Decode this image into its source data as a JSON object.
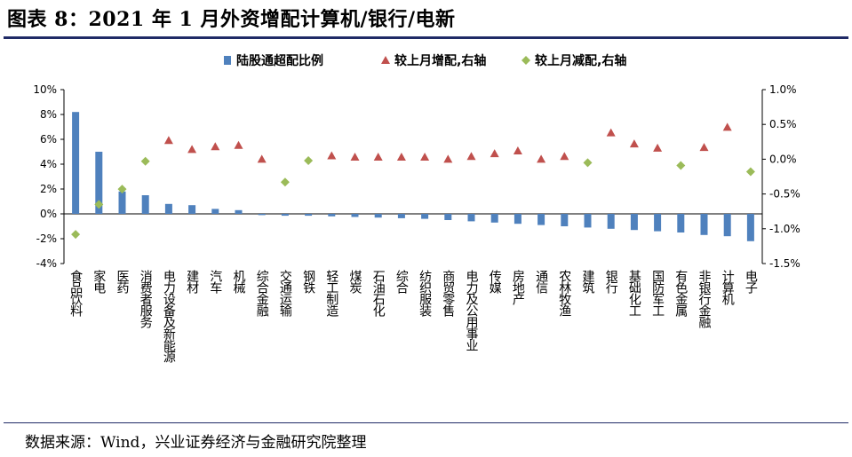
{
  "title": "图表 8：2021 年 1 月外资增配计算机/银行/电新",
  "source": "数据来源：Wind，兴业证券经济与金融研究院整理",
  "colors": {
    "bar": "#4f81bd",
    "increase": "#c0504d",
    "decrease": "#9bbb59",
    "rule": "#1f2a66"
  },
  "chart_data": {
    "type": "bar",
    "legend": {
      "position": "top",
      "items": [
        {
          "label": "陆股通超配比例",
          "marker": "bar"
        },
        {
          "label": "较上月增配,右轴",
          "marker": "triangle"
        },
        {
          "label": "较上月减配,右轴",
          "marker": "diamond"
        }
      ]
    },
    "categories": [
      "食品饮料",
      "家电",
      "医药",
      "消费者服务",
      "电力设备及新能源",
      "建材",
      "汽车",
      "机械",
      "综合金融",
      "交通运输",
      "钢铁",
      "轻工制造",
      "煤炭",
      "石油石化",
      "综合",
      "纺织服装",
      "商贸零售",
      "电力及公用事业",
      "传媒",
      "房地产",
      "通信",
      "农林牧渔",
      "建筑",
      "银行",
      "基础化工",
      "国防军工",
      "有色金属",
      "非银行金融",
      "计算机",
      "电子"
    ],
    "left_axis": {
      "ticks": [
        "10%",
        "8%",
        "6%",
        "4%",
        "2%",
        "0%",
        "-2%",
        "-4%"
      ],
      "ylim": [
        -4,
        10
      ],
      "unit": "%"
    },
    "right_axis": {
      "ticks": [
        "1.0%",
        "0.5%",
        "0.0%",
        "-0.5%",
        "-1.0%",
        "-1.5%"
      ],
      "ylim": [
        -1.5,
        1.0
      ],
      "unit": "%"
    },
    "series": [
      {
        "name": "陆股通超配比例",
        "axis": "left",
        "type": "bar",
        "values": [
          8.2,
          5.0,
          1.8,
          1.5,
          0.8,
          0.7,
          0.4,
          0.3,
          -0.1,
          -0.15,
          -0.15,
          -0.2,
          -0.25,
          -0.3,
          -0.35,
          -0.4,
          -0.5,
          -0.6,
          -0.7,
          -0.8,
          -0.9,
          -1.0,
          -1.1,
          -1.2,
          -1.3,
          -1.4,
          -1.5,
          -1.7,
          -1.8,
          -2.2
        ]
      },
      {
        "name": "较上月增配,右轴",
        "axis": "right",
        "type": "scatter",
        "marker": "triangle",
        "values": [
          null,
          null,
          null,
          null,
          0.27,
          0.14,
          0.18,
          0.2,
          0.0,
          null,
          null,
          0.05,
          0.03,
          0.03,
          0.03,
          0.03,
          0.0,
          0.04,
          0.08,
          0.12,
          0.0,
          0.04,
          null,
          0.38,
          0.22,
          0.16,
          null,
          0.17,
          0.46,
          null
        ]
      },
      {
        "name": "较上月减配,右轴",
        "axis": "right",
        "type": "scatter",
        "marker": "diamond",
        "values": [
          -1.08,
          -0.65,
          -0.43,
          -0.03,
          null,
          null,
          null,
          null,
          null,
          -0.33,
          -0.02,
          null,
          null,
          null,
          null,
          null,
          null,
          null,
          null,
          null,
          null,
          null,
          -0.05,
          null,
          null,
          null,
          -0.09,
          null,
          null,
          -0.18
        ]
      }
    ]
  }
}
